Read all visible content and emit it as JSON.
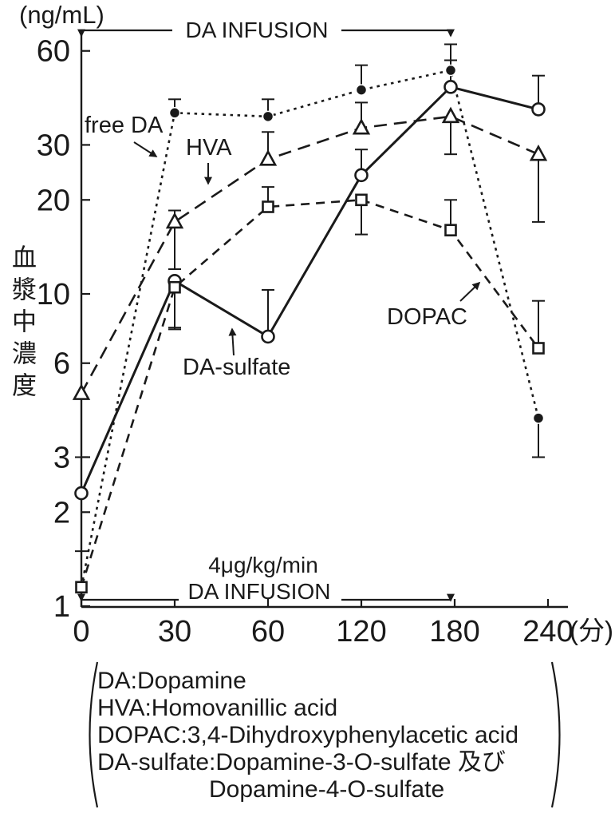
{
  "chart_data": {
    "type": "line",
    "title_unit": "(ng/mL)",
    "y_axis_label": "血漿中濃度",
    "x_unit": "(分)",
    "x_ticks": [
      0,
      30,
      60,
      120,
      180,
      240
    ],
    "y_ticks": [
      1,
      2,
      3,
      6,
      10,
      20,
      30,
      60
    ],
    "y_scale": "log",
    "ylim": [
      1,
      60
    ],
    "grid": false,
    "series": [
      {
        "name": "free DA",
        "marker": "filled-circle",
        "line": "dotted",
        "values": [
          1.15,
          38,
          37,
          45,
          52,
          4
        ],
        "err_up": [
          null,
          42,
          42,
          54,
          56,
          null
        ],
        "err_down": [
          null,
          null,
          null,
          null,
          null,
          3
        ]
      },
      {
        "name": "HVA",
        "marker": "open-triangle",
        "line": "long-dash",
        "values": [
          4.8,
          17,
          27,
          34,
          37,
          28
        ],
        "err_up": [
          null,
          18.5,
          33,
          41,
          null,
          null
        ],
        "err_down": [
          null,
          12,
          null,
          null,
          28,
          17
        ]
      },
      {
        "name": "DA-sulfate",
        "marker": "open-circle",
        "line": "solid",
        "values": [
          2.3,
          11,
          7.3,
          24,
          46,
          39
        ],
        "err_up": [
          3,
          null,
          10.3,
          29,
          63,
          50
        ],
        "err_down": [
          null,
          7.8,
          null,
          null,
          null,
          null
        ]
      },
      {
        "name": "DOPAC",
        "marker": "open-square",
        "line": "dash",
        "values": [
          1.15,
          10.5,
          19,
          20,
          16,
          6.7
        ],
        "err_up": [
          1.5,
          null,
          22,
          null,
          20,
          9.5
        ],
        "err_down": [
          null,
          7.7,
          null,
          15.5,
          null,
          null
        ]
      }
    ],
    "infusion": {
      "label": "DA INFUSION",
      "rate": "4μg/kg/min",
      "span_minutes": [
        0,
        180
      ]
    }
  },
  "legend": {
    "lines": [
      "DA:Dopamine",
      "HVA:Homovanillic acid",
      "DOPAC:3,4-Dihydroxyphenylacetic acid",
      "DA-sulfate:Dopamine-3-O-sulfate 及び",
      "Dopamine-4-O-sulfate"
    ]
  },
  "ink_color": "#1a1a1a"
}
